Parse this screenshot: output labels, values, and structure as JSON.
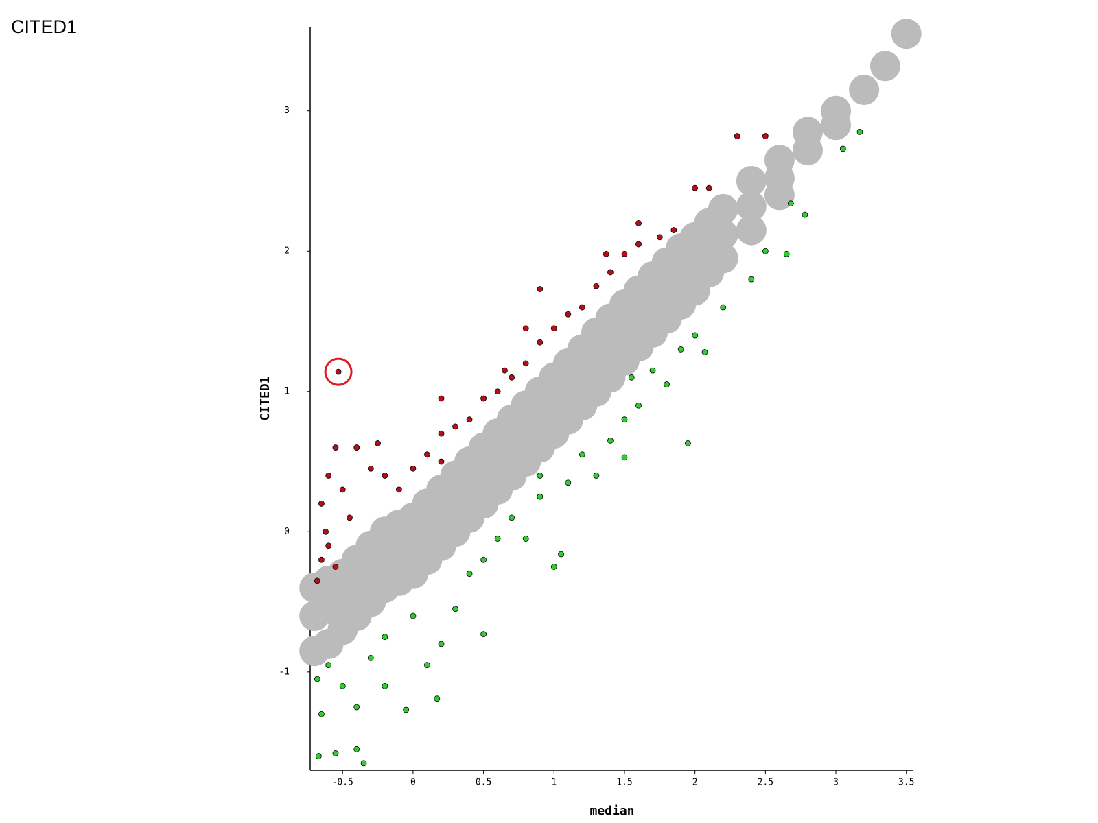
{
  "chart_data": {
    "type": "scatter",
    "title": "CITED1",
    "x_label": "median",
    "y_label": "CITED1",
    "xlim": [
      -0.73,
      3.55
    ],
    "ylim": [
      -1.7,
      3.6
    ],
    "xticks": [
      -0.5,
      0,
      0.5,
      1,
      1.5,
      2,
      2.5,
      3,
      3.5
    ],
    "yticks": [
      -1,
      0,
      1,
      2,
      3
    ],
    "series": [
      {
        "color": "#bbbbbb",
        "x": [
          -0.7,
          -0.7,
          -0.7,
          -0.6,
          -0.6,
          -0.6,
          -0.5,
          -0.5,
          -0.5,
          -0.4,
          -0.4,
          -0.4,
          -0.3,
          -0.3,
          -0.3,
          -0.2,
          -0.2,
          -0.2,
          -0.1,
          -0.1,
          -0.1,
          0,
          0,
          0,
          0.1,
          0.1,
          0.1,
          0.2,
          0.2,
          0.2,
          0.3,
          0.3,
          0.3,
          0.4,
          0.4,
          0.4,
          0.5,
          0.5,
          0.5,
          0.6,
          0.6,
          0.6,
          0.7,
          0.7,
          0.7,
          0.8,
          0.8,
          0.8,
          0.9,
          0.9,
          0.9,
          1.0,
          1.0,
          1.0,
          1.1,
          1.1,
          1.1,
          1.2,
          1.2,
          1.2,
          1.3,
          1.3,
          1.3,
          1.4,
          1.4,
          1.4,
          1.5,
          1.5,
          1.5,
          1.6,
          1.6,
          1.6,
          1.7,
          1.7,
          1.7,
          1.8,
          1.8,
          1.8,
          1.9,
          1.9,
          1.9,
          2.0,
          2.0,
          2.0,
          2.1,
          2.1,
          2.1,
          2.2,
          2.2,
          2.2,
          2.4,
          2.4,
          2.4,
          2.6,
          2.6,
          2.6,
          2.8,
          2.8,
          3.0,
          3.0,
          3.2,
          3.35,
          3.5
        ],
        "y": [
          -0.4,
          -0.6,
          -0.85,
          -0.35,
          -0.55,
          -0.8,
          -0.3,
          -0.5,
          -0.7,
          -0.2,
          -0.4,
          -0.6,
          -0.1,
          -0.3,
          -0.5,
          0,
          -0.2,
          -0.4,
          0.05,
          -0.15,
          -0.35,
          0.1,
          -0.1,
          -0.3,
          0.2,
          0,
          -0.2,
          0.3,
          0.1,
          -0.1,
          0.4,
          0.2,
          0,
          0.5,
          0.3,
          0.1,
          0.6,
          0.4,
          0.2,
          0.7,
          0.5,
          0.3,
          0.8,
          0.6,
          0.4,
          0.9,
          0.7,
          0.5,
          1.0,
          0.8,
          0.6,
          1.1,
          0.9,
          0.7,
          1.2,
          1.0,
          0.8,
          1.3,
          1.1,
          0.9,
          1.42,
          1.2,
          1.0,
          1.52,
          1.3,
          1.1,
          1.62,
          1.42,
          1.22,
          1.72,
          1.52,
          1.32,
          1.82,
          1.62,
          1.42,
          1.92,
          1.72,
          1.52,
          2.02,
          1.82,
          1.62,
          2.1,
          1.92,
          1.72,
          2.2,
          2.02,
          1.85,
          2.3,
          2.12,
          1.95,
          2.5,
          2.32,
          2.15,
          2.65,
          2.52,
          2.4,
          2.85,
          2.72,
          3.0,
          2.9,
          3.15,
          3.32,
          3.55
        ]
      },
      {
        "color": "#b3101a",
        "x": [
          -0.53,
          -0.55,
          -0.6,
          -0.65,
          -0.62,
          -0.65,
          -0.6,
          -0.5,
          -0.4,
          -0.3,
          -0.25,
          -0.2,
          -0.1,
          0,
          0.1,
          0.2,
          0.2,
          0.3,
          0.4,
          0.5,
          0.6,
          0.65,
          0.7,
          0.8,
          0.8,
          0.9,
          0.9,
          1.0,
          1.1,
          1.2,
          1.3,
          1.4,
          1.5,
          1.6,
          1.6,
          1.75,
          1.85,
          2.0,
          2.1,
          2.3,
          2.5,
          1.37,
          0.2,
          -0.45,
          -0.55,
          -0.68
        ],
        "y": [
          1.14,
          0.6,
          0.4,
          0.2,
          0,
          -0.2,
          -0.1,
          0.3,
          0.6,
          0.45,
          0.63,
          0.4,
          0.3,
          0.45,
          0.55,
          0.7,
          0.5,
          0.75,
          0.8,
          0.95,
          1.0,
          1.15,
          1.1,
          1.2,
          1.45,
          1.35,
          1.73,
          1.45,
          1.55,
          1.6,
          1.75,
          1.85,
          1.98,
          2.2,
          2.05,
          2.1,
          2.15,
          2.45,
          2.45,
          2.82,
          2.82,
          1.98,
          0.95,
          0.1,
          -0.25,
          -0.35
        ]
      },
      {
        "color": "#33cc33",
        "x": [
          -0.68,
          -0.65,
          -0.67,
          -0.55,
          -0.4,
          -0.35,
          -0.5,
          -0.4,
          -0.2,
          -0.05,
          0.17,
          -0.6,
          -0.3,
          -0.2,
          0,
          0.1,
          0.2,
          0.3,
          0.5,
          0.4,
          0.5,
          0.6,
          0.7,
          0.8,
          0.9,
          1.0,
          1.05,
          1.1,
          1.2,
          1.3,
          1.4,
          1.5,
          1.5,
          1.6,
          1.7,
          1.8,
          1.9,
          1.95,
          2.0,
          2.07,
          2.2,
          2.4,
          2.5,
          2.65,
          2.68,
          2.78,
          3.05,
          3.17,
          1.55,
          0.9
        ],
        "y": [
          -1.05,
          -1.3,
          -1.6,
          -1.58,
          -1.55,
          -1.65,
          -1.1,
          -1.25,
          -1.1,
          -1.27,
          -1.19,
          -0.95,
          -0.9,
          -0.75,
          -0.6,
          -0.95,
          -0.8,
          -0.55,
          -0.73,
          -0.3,
          -0.2,
          -0.05,
          0.1,
          -0.05,
          0.25,
          -0.25,
          -0.16,
          0.35,
          0.55,
          0.4,
          0.65,
          0.8,
          0.53,
          0.9,
          1.15,
          1.05,
          1.3,
          0.63,
          1.4,
          1.28,
          1.6,
          1.8,
          2.0,
          1.98,
          2.34,
          2.26,
          2.73,
          2.85,
          1.1,
          0.4
        ]
      }
    ]
  }
}
